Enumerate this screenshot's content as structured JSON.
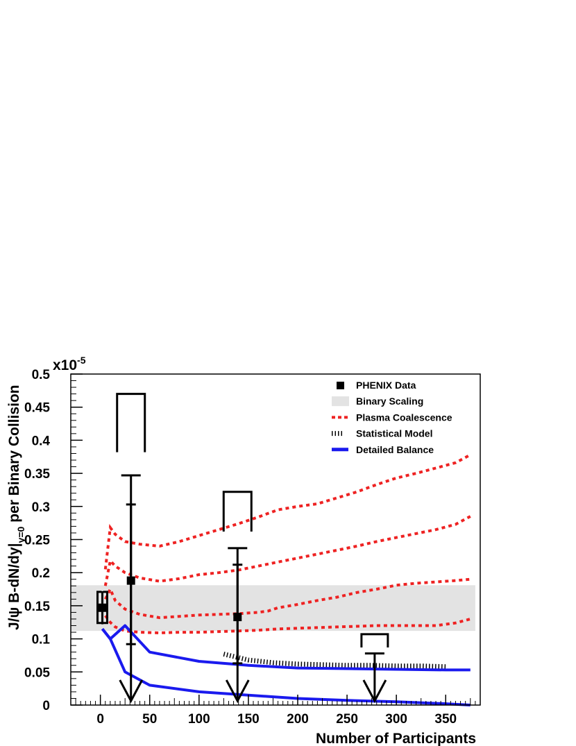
{
  "chart_data": {
    "type": "scatter",
    "xlabel": "Number of Participants",
    "ylabel": "J/ψ  B-dN/dy|",
    "ylabel_sub": "y=0",
    "ylabel_suffix": " per Binary Collision",
    "y_multiplier": "x10",
    "y_multiplier_exp": "-5",
    "xlim": [
      -30,
      385
    ],
    "ylim": [
      0,
      0.5
    ],
    "x_ticks": [
      0,
      50,
      100,
      150,
      200,
      250,
      300,
      350
    ],
    "x_tick_labels": [
      "0",
      "50",
      "100",
      "150",
      "200",
      "250",
      "300",
      "350"
    ],
    "y_ticks": [
      0,
      0.05,
      0.1,
      0.15,
      0.2,
      0.25,
      0.3,
      0.35,
      0.4,
      0.45,
      0.5
    ],
    "y_tick_labels": [
      "0",
      "0.05",
      "0.1",
      "0.15",
      "0.2",
      "0.25",
      "0.3",
      "0.35",
      "0.4",
      "0.45",
      "0.5"
    ],
    "grid": false,
    "legend_position": "top-right",
    "legend": [
      {
        "label": "PHENIX Data",
        "style": "marker",
        "color": "#000000"
      },
      {
        "label": "Binary Scaling",
        "style": "band",
        "color": "#e3e3e3"
      },
      {
        "label": "Plasma Coalescence",
        "style": "dotted",
        "color": "#ee2222"
      },
      {
        "label": "Statistical Model",
        "style": "hatched",
        "color": "#000000"
      },
      {
        "label": "Detailed Balance",
        "style": "solid",
        "color": "#1a1aee"
      }
    ],
    "binary_scaling_band": {
      "x_range": [
        -30,
        380
      ],
      "y_range": [
        0.112,
        0.181
      ]
    },
    "phenix_points": [
      {
        "x": 2,
        "y": 0.147,
        "err_low": 0.122,
        "err_high": 0.172,
        "sys_low": 0.124,
        "sys_high": 0.171
      },
      {
        "x": 31,
        "y": 0.188,
        "err_low": 0.092,
        "err_high": 0.303
      }
    ],
    "upper_limits": [
      {
        "x": 31,
        "stat_high": 0.347,
        "bracket_low": 0.382,
        "bracket_high": 0.47
      },
      {
        "x": 139,
        "stat_high": 0.237,
        "bracket_low": 0.262,
        "bracket_high": 0.322
      },
      {
        "x": 278,
        "stat_high": 0.078,
        "bracket_low": 0.087,
        "bracket_high": 0.107
      }
    ],
    "upper_limit_points": [
      {
        "x": 139,
        "y": 0.133,
        "err_low": 0.063,
        "err_high": 0.212
      }
    ],
    "series": [
      {
        "name": "Plasma Coalescence",
        "style": "dotted",
        "color": "#ee2222",
        "x": [
          5,
          10,
          15,
          25,
          40,
          60,
          80,
          100,
          120,
          140,
          160,
          180,
          200,
          220,
          240,
          260,
          280,
          300,
          320,
          340,
          360,
          375
        ],
        "y": [
          0.205,
          0.268,
          0.258,
          0.247,
          0.243,
          0.24,
          0.247,
          0.256,
          0.265,
          0.274,
          0.284,
          0.295,
          0.3,
          0.304,
          0.313,
          0.322,
          0.333,
          0.343,
          0.35,
          0.358,
          0.366,
          0.378
        ]
      },
      {
        "name": "",
        "style": "dotted",
        "color": "#ee2222",
        "x": [
          5,
          10,
          15,
          25,
          40,
          60,
          80,
          100,
          120,
          140,
          160,
          180,
          200,
          220,
          240,
          260,
          280,
          300,
          320,
          340,
          360,
          375
        ],
        "y": [
          0.18,
          0.218,
          0.21,
          0.2,
          0.192,
          0.187,
          0.191,
          0.197,
          0.2,
          0.204,
          0.21,
          0.216,
          0.222,
          0.228,
          0.234,
          0.24,
          0.247,
          0.253,
          0.259,
          0.265,
          0.273,
          0.285
        ]
      },
      {
        "name": "",
        "style": "dotted",
        "color": "#ee2222",
        "x": [
          5,
          10,
          15,
          25,
          40,
          60,
          80,
          100,
          120,
          140,
          160,
          170,
          180,
          200,
          220,
          240,
          260,
          280,
          300,
          320,
          340,
          360,
          375
        ],
        "y": [
          0.16,
          0.175,
          0.158,
          0.145,
          0.137,
          0.132,
          0.134,
          0.136,
          0.137,
          0.138,
          0.14,
          0.142,
          0.147,
          0.152,
          0.158,
          0.163,
          0.17,
          0.175,
          0.181,
          0.184,
          0.186,
          0.188,
          0.19
        ]
      },
      {
        "name": "",
        "style": "dotted",
        "color": "#ee2222",
        "x": [
          5,
          10,
          15,
          25,
          40,
          60,
          80,
          100,
          120,
          140,
          160,
          180,
          200,
          220,
          240,
          260,
          280,
          300,
          320,
          340,
          360,
          375
        ],
        "y": [
          0.135,
          0.125,
          0.118,
          0.112,
          0.11,
          0.109,
          0.11,
          0.11,
          0.111,
          0.112,
          0.113,
          0.115,
          0.116,
          0.117,
          0.118,
          0.119,
          0.12,
          0.12,
          0.12,
          0.12,
          0.124,
          0.13
        ]
      },
      {
        "name": "Statistical Model",
        "style": "hatched",
        "color": "#000000",
        "x": [
          125,
          150,
          175,
          200,
          225,
          250,
          275,
          300,
          325,
          350
        ],
        "y": [
          0.077,
          0.068,
          0.064,
          0.062,
          0.061,
          0.06,
          0.06,
          0.059,
          0.059,
          0.058
        ]
      },
      {
        "name": "Detailed Balance",
        "style": "solid",
        "color": "#1a1aee",
        "x": [
          2,
          10,
          25,
          50,
          100,
          150,
          200,
          250,
          300,
          350,
          375
        ],
        "y": [
          0.115,
          0.1,
          0.12,
          0.08,
          0.066,
          0.06,
          0.056,
          0.055,
          0.054,
          0.053,
          0.053
        ]
      },
      {
        "name": "",
        "style": "solid",
        "color": "#1a1aee",
        "x": [
          2,
          10,
          25,
          50,
          100,
          150,
          200,
          250,
          300,
          350,
          375
        ],
        "y": [
          0.115,
          0.1,
          0.05,
          0.03,
          0.02,
          0.015,
          0.01,
          0.007,
          0.005,
          0.002,
          0.0
        ]
      }
    ]
  }
}
